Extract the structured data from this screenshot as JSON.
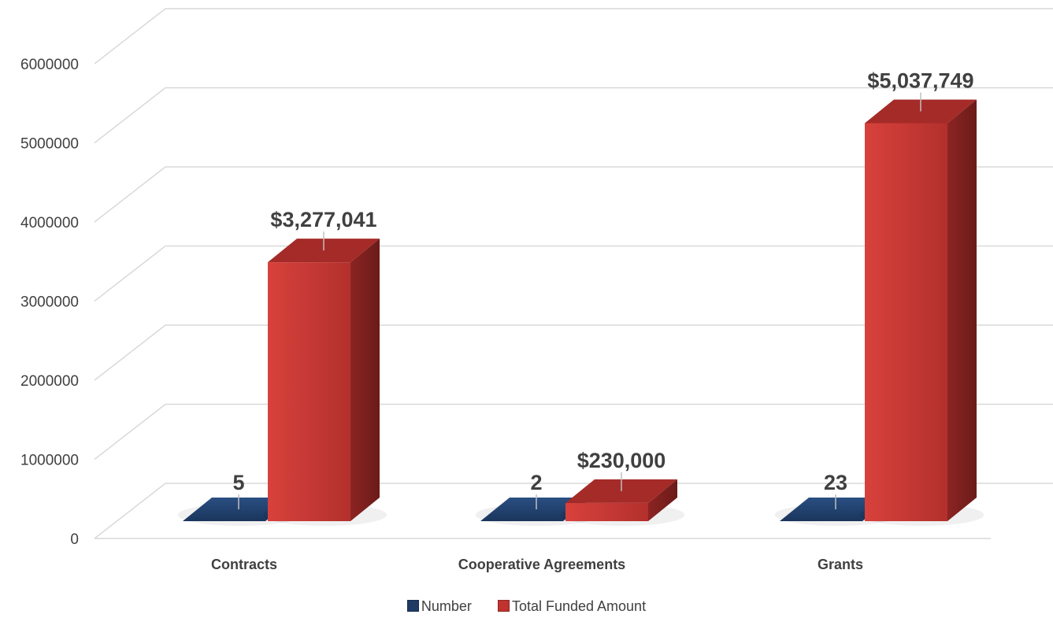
{
  "chart_data": {
    "type": "bar",
    "categories": [
      "Contracts",
      "Cooperative Agreements",
      "Grants"
    ],
    "series": [
      {
        "name": "Number",
        "values": [
          5,
          2,
          23
        ],
        "labels": [
          "5",
          "2",
          "23"
        ],
        "color": "#1f3b63"
      },
      {
        "name": "Total Funded Amount",
        "values": [
          3277041,
          230000,
          5037749
        ],
        "labels": [
          "$3,277,041",
          "$230,000",
          "$5,037,749"
        ],
        "color": "#c0332f"
      }
    ],
    "y_ticks": [
      "0",
      "1000000",
      "2000000",
      "3000000",
      "4000000",
      "5000000",
      "6000000"
    ],
    "ylim": [
      0,
      6000000
    ],
    "grid": true,
    "legend_position": "bottom",
    "style": "3d-clustered-column"
  }
}
